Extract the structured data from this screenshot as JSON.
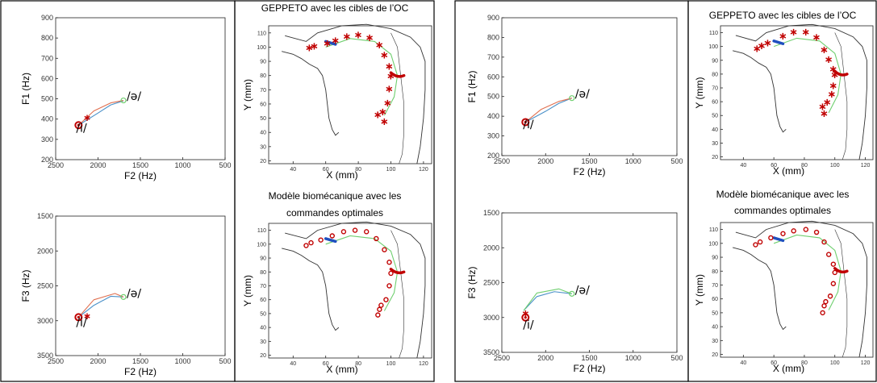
{
  "colors": {
    "red": "#c00000",
    "blue": "#1f4fbf",
    "sim_blue": "#4a90c8",
    "sim_orange": "#e07050",
    "green": "#6fcf6f",
    "contour": "#333333"
  },
  "chart_data": [
    {
      "id": "l1",
      "type": "line",
      "xlabel": "F2 (Hz)",
      "ylabel": "F1 (Hz)",
      "xlim": [
        2500,
        500
      ],
      "ylim": [
        900,
        200
      ],
      "xticks": [
        "2500",
        "2000",
        "1500",
        "1000",
        "500"
      ],
      "yticks": [
        "200",
        "300",
        "400",
        "500",
        "600",
        "700",
        "800",
        "900"
      ],
      "annotations": [
        "/i/",
        "/ə/"
      ],
      "series": [
        {
          "role": "sim_a",
          "color": "#4a90c8",
          "x": [
            2230,
            2000,
            1850,
            1700
          ],
          "y": [
            370,
            430,
            470,
            490
          ]
        },
        {
          "role": "sim_b",
          "color": "#e07050",
          "x": [
            2230,
            2050,
            1850,
            1700
          ],
          "y": [
            370,
            440,
            480,
            492
          ]
        }
      ],
      "markers": [
        {
          "kind": "circle",
          "color": "#c00000",
          "x": 2230,
          "y": 370
        },
        {
          "kind": "star",
          "color": "#c00000",
          "x": 2130,
          "y": 410
        },
        {
          "kind": "circle",
          "color": "#6fcf6f",
          "x": 1700,
          "y": 492
        }
      ]
    },
    {
      "id": "l2",
      "type": "line",
      "xlabel": "F2 (Hz)",
      "ylabel": "F3 (Hz)",
      "xlim": [
        2500,
        500
      ],
      "ylim": [
        1500,
        3500
      ],
      "xticks": [
        "2500",
        "2000",
        "1500",
        "1000",
        "500"
      ],
      "yticks": [
        "3500",
        "3000",
        "2500",
        "2000",
        "1500"
      ],
      "annotations": [
        "/i/",
        "/ə/"
      ],
      "series": [
        {
          "role": "sim_a",
          "color": "#4a90c8",
          "x": [
            2230,
            2050,
            1850,
            1700
          ],
          "y": [
            2950,
            2780,
            2650,
            2660
          ]
        },
        {
          "role": "sim_b",
          "color": "#e07050",
          "x": [
            2230,
            2050,
            1800,
            1700
          ],
          "y": [
            2950,
            2700,
            2610,
            2660
          ]
        }
      ],
      "markers": [
        {
          "kind": "circle",
          "color": "#c00000",
          "x": 2230,
          "y": 2950
        },
        {
          "kind": "star",
          "color": "#c00000",
          "x": 2130,
          "y": 2920
        },
        {
          "kind": "circle",
          "color": "#6fcf6f",
          "x": 1700,
          "y": 2660
        }
      ]
    },
    {
      "id": "l3",
      "type": "line",
      "xlabel": "F2 (Hz)",
      "ylabel": "F1 (Hz)",
      "xlim": [
        2500,
        500
      ],
      "ylim": [
        900,
        200
      ],
      "xticks": [
        "2500",
        "2000",
        "1500",
        "1000",
        "500"
      ],
      "yticks": [
        "200",
        "300",
        "400",
        "500",
        "600",
        "700",
        "800",
        "900"
      ],
      "annotations": [
        "/i/",
        "/ə/"
      ],
      "series": [
        {
          "role": "sim_a",
          "color": "#4a90c8",
          "x": [
            2230,
            2000,
            1850,
            1700
          ],
          "y": [
            370,
            425,
            465,
            492
          ]
        },
        {
          "role": "sim_b",
          "color": "#e07050",
          "x": [
            2230,
            2050,
            1850,
            1700
          ],
          "y": [
            370,
            435,
            475,
            492
          ]
        }
      ],
      "markers": [
        {
          "kind": "circle",
          "color": "#c00000",
          "x": 2230,
          "y": 370
        },
        {
          "kind": "circle",
          "color": "#6fcf6f",
          "x": 1700,
          "y": 492
        }
      ]
    },
    {
      "id": "l4",
      "type": "line",
      "xlabel": "F2 (Hz)",
      "ylabel": "F3 (Hz)",
      "xlim": [
        2500,
        500
      ],
      "ylim": [
        1500,
        3500
      ],
      "xticks": [
        "2500",
        "2000",
        "1500",
        "1000",
        "500"
      ],
      "yticks": [
        "3500",
        "3000",
        "2500",
        "2000",
        "1500"
      ],
      "annotations": [
        "/i/",
        "/ə/"
      ],
      "series": [
        {
          "role": "sim_a",
          "color": "#4a90c8",
          "x": [
            2250,
            2100,
            1900,
            1700
          ],
          "y": [
            2900,
            2700,
            2630,
            2660
          ]
        },
        {
          "role": "sim_b",
          "color": "#6fcf6f",
          "x": [
            2250,
            2100,
            1850,
            1700
          ],
          "y": [
            2900,
            2650,
            2590,
            2660
          ]
        }
      ],
      "markers": [
        {
          "kind": "circle",
          "color": "#c00000",
          "x": 2230,
          "y": 3000
        },
        {
          "kind": "star",
          "color": "#c00000",
          "x": 2230,
          "y": 2930
        },
        {
          "kind": "circle",
          "color": "#6fcf6f",
          "x": 1700,
          "y": 2660
        }
      ]
    },
    {
      "id": "r1",
      "type": "scatter",
      "title": "GEPPETO avec les cibles de l’OC",
      "xlabel": "X (mm)",
      "ylabel": "Y (mm)",
      "xlim": [
        25,
        125
      ],
      "ylim": [
        18,
        115
      ],
      "xticks": [
        "40",
        "60",
        "80",
        "100",
        "120"
      ],
      "yticks": [
        "110",
        "100",
        "90",
        "80",
        "70",
        "60",
        "50",
        "40",
        "30",
        "20"
      ],
      "target_marker": "star",
      "targets_x": [
        50,
        53,
        61,
        66,
        73,
        80,
        87,
        93,
        96,
        99,
        100,
        99,
        98,
        95,
        92,
        96
      ],
      "targets_y": [
        100,
        101,
        103,
        105,
        108,
        109,
        107,
        102,
        95,
        87,
        80,
        71,
        61,
        55,
        53,
        48
      ]
    },
    {
      "id": "r2",
      "type": "scatter",
      "title": "Modèle biomécanique  avec les commandes optimales",
      "xlabel": "X (mm)",
      "ylabel": "Y (mm)",
      "xlim": [
        25,
        125
      ],
      "ylim": [
        18,
        115
      ],
      "xticks": [
        "40",
        "60",
        "80",
        "100",
        "120"
      ],
      "yticks": [
        "110",
        "100",
        "90",
        "80",
        "70",
        "60",
        "50",
        "40",
        "30",
        "20"
      ],
      "target_marker": "circle",
      "targets_x": [
        48,
        51,
        57,
        64,
        71,
        78,
        85,
        91,
        96,
        99,
        100,
        99,
        97,
        94,
        93,
        92
      ],
      "targets_y": [
        99,
        101,
        103,
        106,
        109,
        110,
        109,
        104,
        96,
        87,
        79,
        70,
        60,
        56,
        53,
        49
      ]
    },
    {
      "id": "r3",
      "type": "scatter",
      "title": "GEPPETO avec les cibles de l’OC",
      "xlabel": "X (mm)",
      "ylabel": "Y (mm)",
      "xlim": [
        25,
        125
      ],
      "ylim": [
        18,
        115
      ],
      "xticks": [
        "40",
        "60",
        "80",
        "100",
        "120"
      ],
      "yticks": [
        "110",
        "100",
        "90",
        "80",
        "70",
        "60",
        "50",
        "40",
        "30",
        "20"
      ],
      "target_marker": "star",
      "targets_x": [
        49,
        52,
        56,
        66,
        73,
        81,
        88,
        93,
        96,
        99,
        100,
        99,
        98,
        95,
        92,
        93
      ],
      "targets_y": [
        99,
        101,
        103,
        108,
        111,
        111,
        107,
        98,
        91,
        84,
        80,
        72,
        66,
        60,
        57,
        52
      ]
    },
    {
      "id": "r4",
      "type": "scatter",
      "title": "Modèle biomécanique  avec les commandes optimales",
      "xlabel": "X (mm)",
      "ylabel": "Y (mm)",
      "xlim": [
        25,
        125
      ],
      "ylim": [
        18,
        115
      ],
      "xticks": [
        "40",
        "60",
        "80",
        "100",
        "120"
      ],
      "yticks": [
        "110",
        "100",
        "90",
        "80",
        "70",
        "60",
        "50",
        "40",
        "30",
        "20"
      ],
      "target_marker": "circle",
      "targets_x": [
        48,
        51,
        58,
        66,
        73,
        81,
        88,
        93,
        96,
        99,
        100,
        99,
        97,
        94,
        93,
        92
      ],
      "targets_y": [
        99,
        101,
        104,
        107,
        109,
        110,
        108,
        101,
        92,
        85,
        79,
        71,
        62,
        58,
        55,
        50
      ]
    }
  ]
}
